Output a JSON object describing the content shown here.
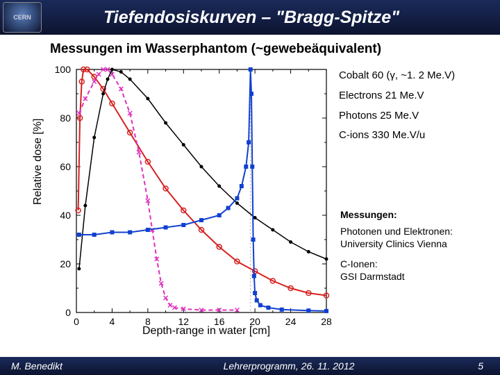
{
  "title": "Tiefendosiskurven – \"Bragg-Spitze\"",
  "logo_text": "CERN",
  "subtitle": "Messungen im Wasserphantom (~gewebeäquivalent)",
  "chart": {
    "type": "line",
    "xlabel": "Depth-range in water [cm]",
    "ylabel": "Relative dose [%]",
    "xlim": [
      0,
      28
    ],
    "xtick_step": 4,
    "ylim": [
      0,
      100
    ],
    "ytick_step": 20,
    "plot_bg": "#ffffff",
    "axis_color": "#000000",
    "series": [
      {
        "name": "cobalt60",
        "label": "Cobalt 60 (γ, ~1.2 Me.V)",
        "color": "#d62020",
        "marker": "circle-open",
        "linestyle": "solid",
        "linewidth": 2,
        "points": [
          [
            0.2,
            42
          ],
          [
            0.4,
            80
          ],
          [
            0.6,
            95
          ],
          [
            0.8,
            100
          ],
          [
            1.2,
            100
          ],
          [
            2,
            97
          ],
          [
            3,
            92
          ],
          [
            4,
            86
          ],
          [
            6,
            74
          ],
          [
            8,
            62
          ],
          [
            10,
            51
          ],
          [
            12,
            42
          ],
          [
            14,
            34
          ],
          [
            16,
            27
          ],
          [
            18,
            21
          ],
          [
            20,
            17
          ],
          [
            22,
            13
          ],
          [
            24,
            10
          ],
          [
            26,
            8
          ],
          [
            28,
            7
          ]
        ]
      },
      {
        "name": "electrons",
        "label": "Electrons 21 Me.V",
        "color": "#e030c0",
        "marker": "x",
        "linestyle": "dashed",
        "linewidth": 2,
        "points": [
          [
            0.3,
            82
          ],
          [
            1,
            88
          ],
          [
            2,
            95
          ],
          [
            2.5,
            98
          ],
          [
            3,
            100
          ],
          [
            3.5,
            100
          ],
          [
            4,
            98
          ],
          [
            5,
            92
          ],
          [
            6,
            82
          ],
          [
            7,
            66
          ],
          [
            8,
            46
          ],
          [
            8.5,
            34
          ],
          [
            9,
            22
          ],
          [
            9.5,
            12
          ],
          [
            10,
            6
          ],
          [
            10.5,
            3
          ],
          [
            11,
            2
          ],
          [
            12,
            1.5
          ],
          [
            14,
            1
          ],
          [
            16,
            1
          ],
          [
            18,
            1
          ]
        ]
      },
      {
        "name": "photons",
        "label": "Photons 25 Me.V",
        "color": "#000000",
        "marker": "dot",
        "linestyle": "solid",
        "linewidth": 1.5,
        "points": [
          [
            0.3,
            18
          ],
          [
            1,
            44
          ],
          [
            2,
            72
          ],
          [
            3,
            90
          ],
          [
            3.5,
            96
          ],
          [
            4,
            100
          ],
          [
            5,
            99
          ],
          [
            6,
            96
          ],
          [
            8,
            88
          ],
          [
            10,
            78
          ],
          [
            12,
            69
          ],
          [
            14,
            60
          ],
          [
            16,
            52
          ],
          [
            18,
            45
          ],
          [
            20,
            39
          ],
          [
            22,
            34
          ],
          [
            24,
            29
          ],
          [
            26,
            25
          ],
          [
            28,
            22
          ]
        ]
      },
      {
        "name": "cions",
        "label": "C-ions 330 Me.V/u",
        "color": "#1040d0",
        "marker": "square",
        "linestyle": "solid",
        "linewidth": 2,
        "points": [
          [
            0.3,
            32
          ],
          [
            2,
            32
          ],
          [
            4,
            33
          ],
          [
            6,
            33
          ],
          [
            8,
            34
          ],
          [
            10,
            35
          ],
          [
            12,
            36
          ],
          [
            14,
            38
          ],
          [
            16,
            40
          ],
          [
            17,
            43
          ],
          [
            18,
            47
          ],
          [
            18.5,
            52
          ],
          [
            19,
            60
          ],
          [
            19.3,
            70
          ],
          [
            19.5,
            100
          ],
          [
            19.6,
            90
          ],
          [
            19.7,
            60
          ],
          [
            19.8,
            30
          ],
          [
            19.9,
            15
          ],
          [
            20,
            8
          ],
          [
            20.2,
            5
          ],
          [
            20.6,
            3
          ],
          [
            21.5,
            2
          ],
          [
            23,
            1.2
          ],
          [
            26,
            0.8
          ],
          [
            28,
            0.6
          ]
        ]
      }
    ],
    "peak_ref_line": {
      "x": 19.5,
      "color": "#aaaaaa",
      "style": "dotted"
    }
  },
  "legend_items": [
    {
      "key": "cobalt60",
      "text": "Cobalt 60 (γ, ~1. 2 Me.V)",
      "color": "#d62020"
    },
    {
      "key": "electrons",
      "text": "Electrons 21 Me.V",
      "color": "#e030c0"
    },
    {
      "key": "photons",
      "text": "Photons 25 Me.V",
      "color": "#000000"
    },
    {
      "key": "cions",
      "text": "C-ions 330 Me.V/u",
      "color": "#1040d0"
    }
  ],
  "measurements": {
    "heading": "Messungen:",
    "block1_l1": "Photonen und Elektronen:",
    "block1_l2": "University Clinics Vienna",
    "block2_l1": "C-Ionen:",
    "block2_l2": "GSI Darmstadt"
  },
  "footer": {
    "author": "M. Benedikt",
    "center": "Lehrerprogramm, 26. 11. 2012",
    "page": "5"
  }
}
